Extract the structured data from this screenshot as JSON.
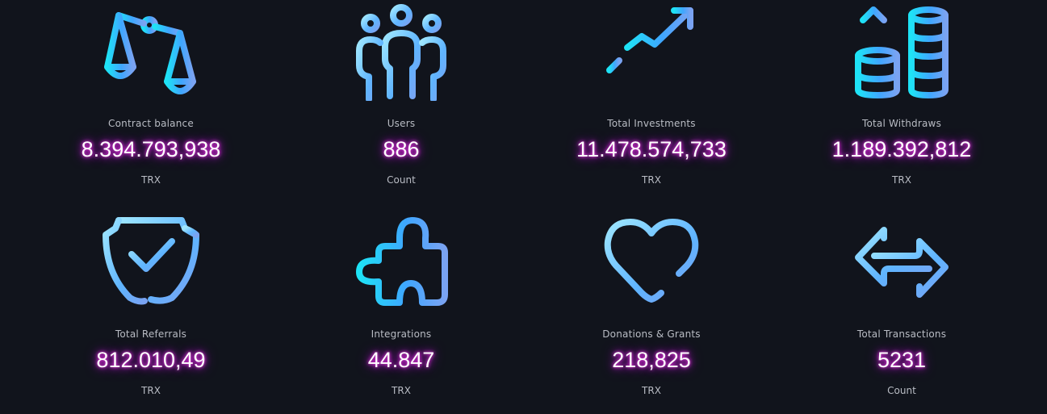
{
  "colors": {
    "background": "#11141c",
    "icon_gradient_start": "#1ee3f6",
    "icon_gradient_mid": "#3fa6ff",
    "icon_gradient_end": "#7aa3f2",
    "icon_light": "#9ee6ff",
    "value_glow": "#d21fe0",
    "label_text": "#b9bcc4"
  },
  "stats": [
    {
      "icon": "scales-icon",
      "label": "Contract balance",
      "value": "8.394.793,938",
      "unit": "TRX"
    },
    {
      "icon": "users-icon",
      "label": "Users",
      "value": "886",
      "unit": "Count"
    },
    {
      "icon": "growth-chart-icon",
      "label": "Total Investments",
      "value": "11.478.574,733",
      "unit": "TRX"
    },
    {
      "icon": "coins-withdraw-icon",
      "label": "Total Withdraws",
      "value": "1.189.392,812",
      "unit": "TRX"
    },
    {
      "icon": "shield-check-icon",
      "label": "Total Referrals",
      "value": "812.010,49",
      "unit": "TRX"
    },
    {
      "icon": "puzzle-icon",
      "label": "Integrations",
      "value": "44.847",
      "unit": "TRX"
    },
    {
      "icon": "heart-icon",
      "label": "Donations & Grants",
      "value": "218,825",
      "unit": "TRX"
    },
    {
      "icon": "arrows-exchange-icon",
      "label": "Total Transactions",
      "value": "5231",
      "unit": "Count"
    }
  ]
}
